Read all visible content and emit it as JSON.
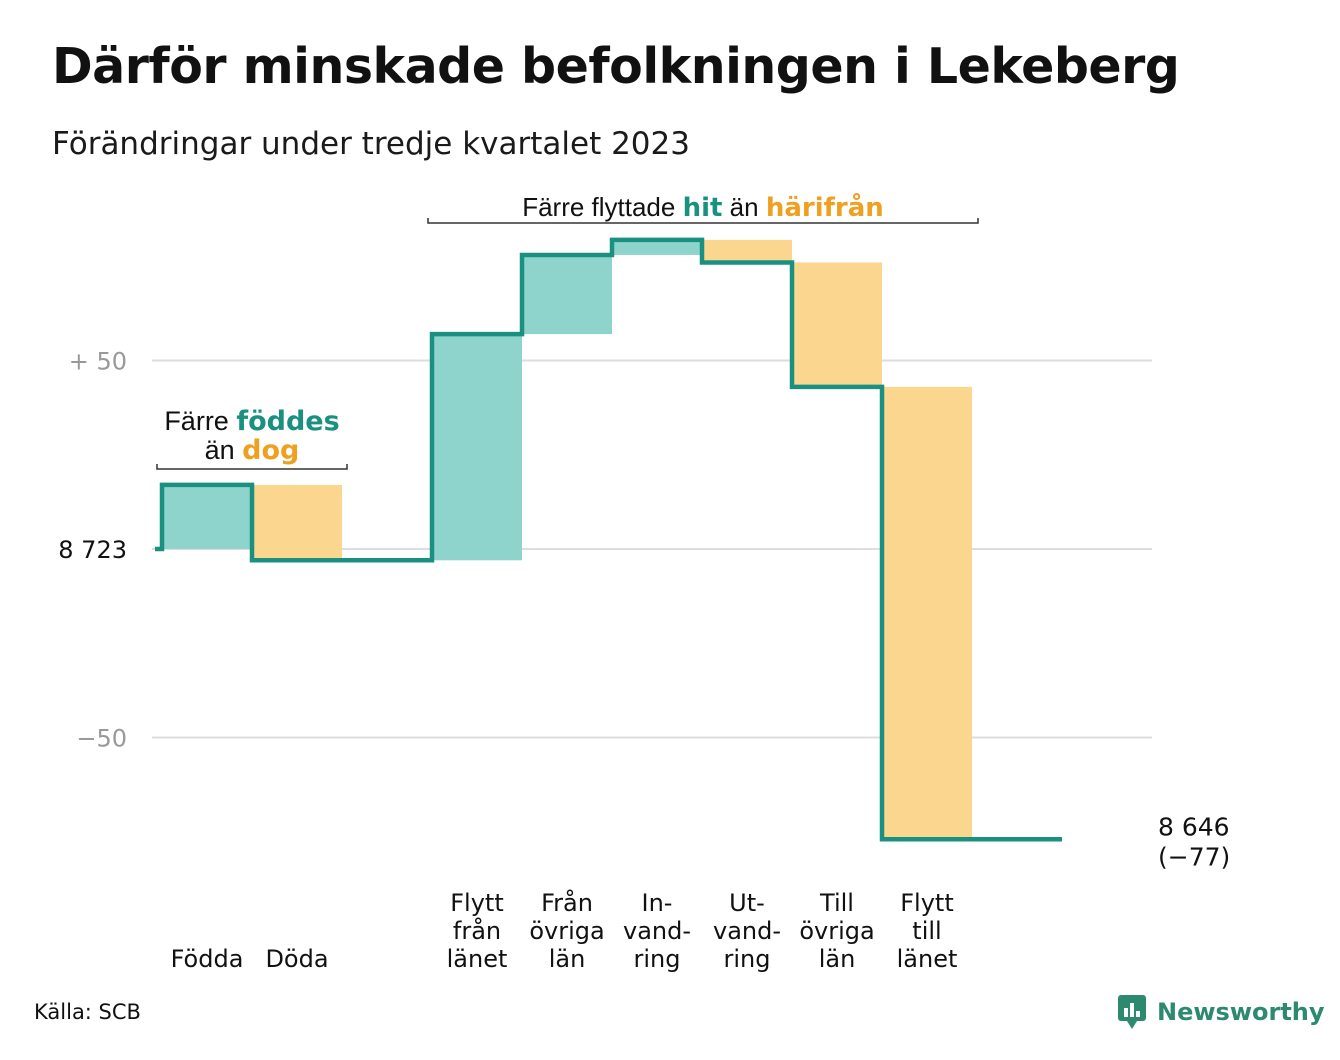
{
  "title": "Därför minskade befolkningen i Lekeberg",
  "subtitle": "Förändringar under tredje kvartalet 2023",
  "source": "Källa: SCB",
  "brand": {
    "name": "Newsworthy",
    "icon": "chart-bubble-icon",
    "color": "#2d8a6e"
  },
  "colors": {
    "in": "#8fd4cc",
    "out": "#fbd68f",
    "line": "#1a9080",
    "in_text": "#1a9080",
    "out_text": "#f0a020",
    "grid": "#dddddd"
  },
  "chart_data": {
    "type": "waterfall",
    "start_value": 8723,
    "start_label": "8 723",
    "end_value": 8646,
    "end_label": "8 646",
    "end_change_label": "(−77)",
    "y_ticks": [
      {
        "value": 50,
        "label": "+  50"
      },
      {
        "value": 0,
        "label": "8  723"
      },
      {
        "value": -50,
        "label": "−50"
      }
    ],
    "ylim": [
      -80,
      88
    ],
    "grid": true,
    "steps": [
      {
        "label": [
          "Födda"
        ],
        "change": 17,
        "kind": "in"
      },
      {
        "label": [
          "Döda"
        ],
        "change": -20,
        "kind": "out"
      },
      {
        "label": [],
        "change": 0,
        "kind": "none"
      },
      {
        "label": [
          "Flytt",
          "från",
          "länet"
        ],
        "change": 60,
        "kind": "in"
      },
      {
        "label": [
          "Från",
          "övriga",
          "län"
        ],
        "change": 21,
        "kind": "in"
      },
      {
        "label": [
          "In-",
          "vand-",
          "ring"
        ],
        "change": 4,
        "kind": "in"
      },
      {
        "label": [
          "Ut-",
          "vand-",
          "ring"
        ],
        "change": -6,
        "kind": "out"
      },
      {
        "label": [
          "Till",
          "övriga",
          "län"
        ],
        "change": -33,
        "kind": "out"
      },
      {
        "label": [
          "Flytt",
          "till",
          "länet"
        ],
        "change": -120,
        "kind": "out"
      },
      {
        "label": [],
        "change": 0,
        "kind": "none"
      }
    ],
    "annotations": [
      {
        "parts": [
          [
            "Färre ",
            "plain"
          ],
          [
            "föddes",
            "in"
          ]
        ],
        "parts2": [
          [
            "än ",
            "plain"
          ],
          [
            "dog",
            "out"
          ]
        ],
        "from_step": 0,
        "to_step": 1
      },
      {
        "parts": [
          [
            "Färre flyttade ",
            "plain"
          ],
          [
            "hit",
            "in"
          ],
          [
            " än ",
            "plain"
          ],
          [
            "härifrån",
            "out"
          ]
        ],
        "from_step": 3,
        "to_step": 8
      }
    ]
  }
}
